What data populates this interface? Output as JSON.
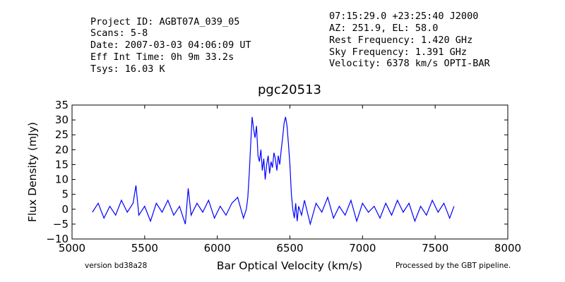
{
  "header_left": [
    "Project ID: AGBT07A_039_05",
    "Scans: 5-8",
    "Date: 2007-03-03 04:06:09 UT",
    "Eff Int Time: 0h 9m 33.2s",
    "Tsys: 16.03 K"
  ],
  "header_right": [
    "07:15:29.0 +23:25:40 J2000",
    "AZ: 251.9, EL: 58.0",
    "Rest Frequency:   1.420 GHz",
    "Sky Frequency:    1.391 GHz",
    "Velocity: 6378 km/s OPTI-BAR"
  ],
  "footer": {
    "version": "version bd38a28",
    "pipeline": "Processed by the GBT pipeline.",
    "pipeline_color": "#ff4444"
  },
  "chart_data": {
    "type": "line",
    "title": "pgc20513",
    "xlabel": "Bar Optical Velocity (km/s)",
    "ylabel": "Flux Density (mJy)",
    "xlim": [
      5000,
      8000
    ],
    "ylim": [
      -10,
      35
    ],
    "xticks": [
      5000,
      5500,
      6000,
      6500,
      7000,
      7500,
      8000
    ],
    "yticks": [
      -10,
      -5,
      0,
      5,
      10,
      15,
      20,
      25,
      30,
      35
    ],
    "grid": false,
    "line_color": "#0000ff",
    "series": [
      {
        "x": [
          5140,
          5180,
          5220,
          5260,
          5300,
          5340,
          5380,
          5420,
          5440,
          5460,
          5500,
          5540,
          5580,
          5620,
          5660,
          5700,
          5740,
          5780,
          5800,
          5820,
          5860,
          5900,
          5940,
          5980,
          6020,
          6060,
          6100,
          6140,
          6180,
          6200,
          6210,
          6220,
          6230,
          6240,
          6250,
          6260,
          6270,
          6280,
          6290,
          6300,
          6310,
          6320,
          6330,
          6340,
          6350,
          6360,
          6370,
          6380,
          6390,
          6400,
          6410,
          6420,
          6430,
          6440,
          6450,
          6460,
          6470,
          6480,
          6490,
          6500,
          6510,
          6520,
          6530,
          6540,
          6550,
          6560,
          6580,
          6600,
          6640,
          6680,
          6720,
          6760,
          6800,
          6840,
          6880,
          6920,
          6960,
          7000,
          7040,
          7080,
          7120,
          7160,
          7200,
          7240,
          7280,
          7320,
          7360,
          7400,
          7440,
          7480,
          7520,
          7560,
          7600,
          7630
        ],
        "y": [
          -1,
          2,
          -3,
          1,
          -2,
          3,
          -1,
          2,
          8,
          -2,
          1,
          -4,
          2,
          -1,
          3,
          -2,
          1,
          -5,
          7,
          -2,
          2,
          -1,
          3,
          -3,
          1,
          -2,
          2,
          4,
          -3,
          0,
          4,
          12,
          22,
          31,
          27,
          24,
          28,
          18,
          16,
          20,
          13,
          17,
          10,
          15,
          18,
          12,
          16,
          14,
          19,
          17,
          13,
          18,
          15,
          20,
          24,
          29,
          31,
          28,
          22,
          15,
          5,
          0,
          -3,
          2,
          -4,
          1,
          -2,
          3,
          -5,
          2,
          -1,
          4,
          -3,
          1,
          -2,
          3,
          -4,
          2,
          -1,
          1,
          -3,
          2,
          -2,
          3,
          -1,
          2,
          -4,
          1,
          -2,
          3,
          -1,
          2,
          -3,
          1
        ]
      }
    ]
  }
}
